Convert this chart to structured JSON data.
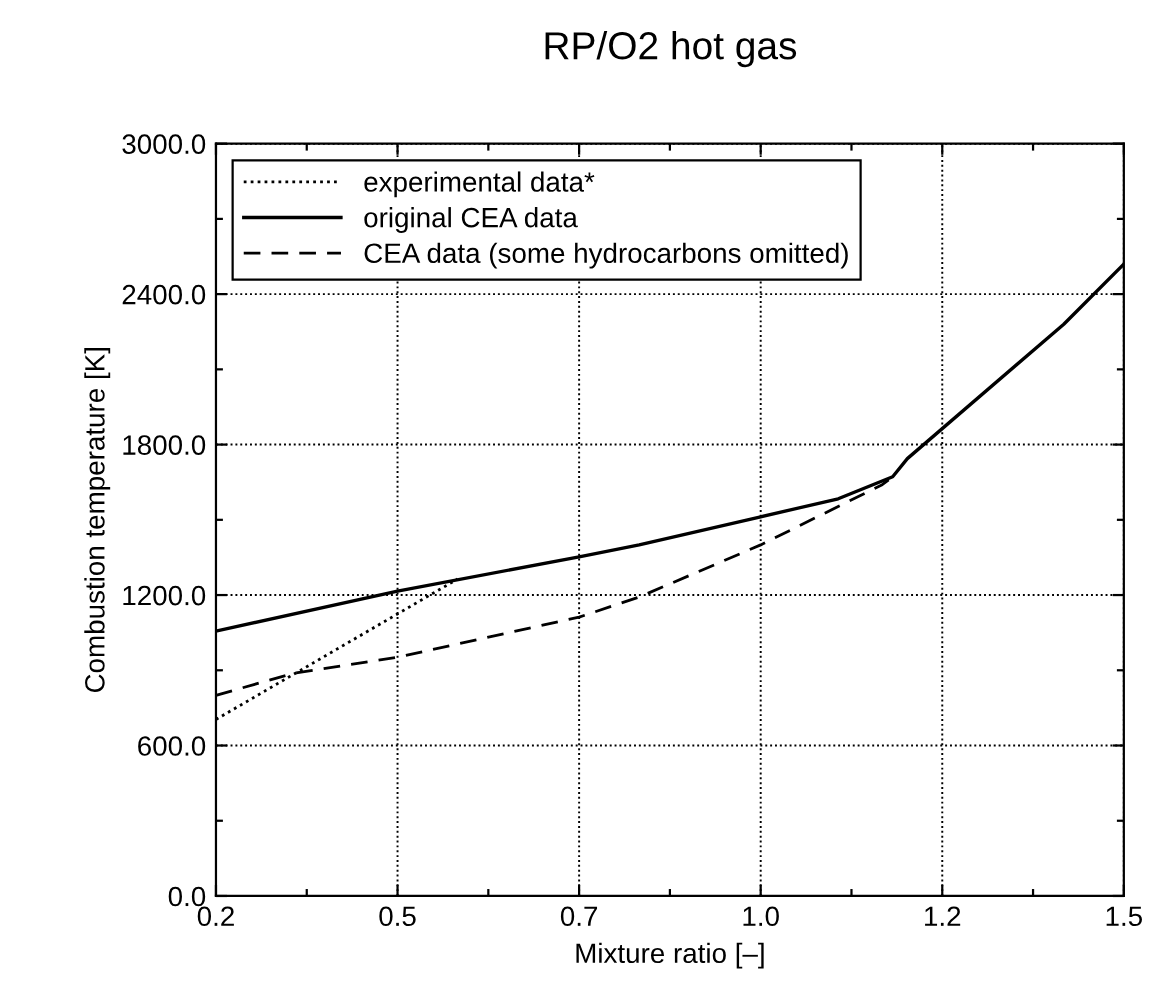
{
  "chart_data": {
    "type": "line",
    "title": "RP/O2 hot gas",
    "xlabel": "Mixture ratio [–]",
    "ylabel": "Combustion temperature [K]",
    "xlim": [
      0.2,
      1.5
    ],
    "xticks": [
      {
        "value": 0.2,
        "label": "0.2"
      },
      {
        "value": 0.33,
        "label": null
      },
      {
        "value": 0.46,
        "label": "0.5"
      },
      {
        "value": 0.59,
        "label": null
      },
      {
        "value": 0.72,
        "label": "0.7"
      },
      {
        "value": 0.85,
        "label": null
      },
      {
        "value": 0.98,
        "label": "1.0"
      },
      {
        "value": 1.11,
        "label": null
      },
      {
        "value": 1.24,
        "label": "1.2"
      },
      {
        "value": 1.37,
        "label": null
      },
      {
        "value": 1.5,
        "label": "1.5"
      }
    ],
    "ylim": [
      0,
      3000
    ],
    "yticks": [
      {
        "value": 0,
        "label": "0.0"
      },
      {
        "value": 300,
        "label": null
      },
      {
        "value": 600,
        "label": "600.0"
      },
      {
        "value": 900,
        "label": null
      },
      {
        "value": 1200,
        "label": "1200.0"
      },
      {
        "value": 1500,
        "label": null
      },
      {
        "value": 1800,
        "label": "1800.0"
      },
      {
        "value": 2100,
        "label": null
      },
      {
        "value": 2400,
        "label": "2400.0"
      },
      {
        "value": 2700,
        "label": null
      },
      {
        "value": 3000,
        "label": "3000.0"
      }
    ],
    "grid": true,
    "legend": "top left",
    "series": [
      {
        "name": "experimental data*",
        "color": "#000000",
        "line_style": "dotted",
        "x": [
          0.2,
          0.546
        ],
        "values": [
          704,
          1264
        ]
      },
      {
        "name": "original CEA data",
        "color": "#000000",
        "line_style": "solid",
        "x": [
          0.2,
          0.46,
          0.72,
          0.806,
          0.98,
          1.091,
          1.169,
          1.19,
          1.414,
          1.5
        ],
        "values": [
          1056,
          1216,
          1352,
          1400,
          1512,
          1584,
          1672,
          1744,
          2280,
          2520
        ]
      },
      {
        "name": "CEA data (some hydrocarbons omitted)",
        "color": "#000000",
        "line_style": "dashed",
        "x": [
          0.2,
          0.311,
          0.46,
          0.72,
          0.806,
          0.98,
          1.154,
          1.169
        ],
        "values": [
          800,
          888,
          952,
          1112,
          1192,
          1400,
          1640,
          1672
        ]
      }
    ]
  }
}
